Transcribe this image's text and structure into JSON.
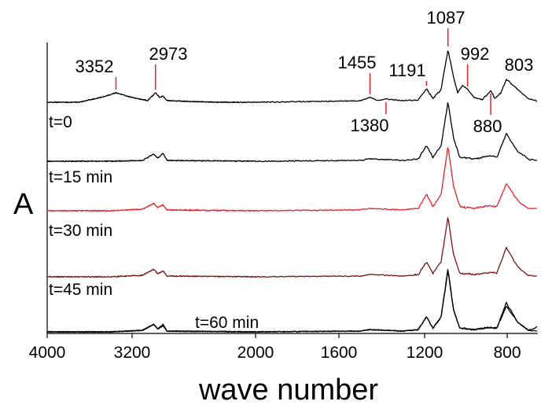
{
  "chart_data": {
    "type": "line",
    "xlabel": "wave number",
    "ylabel": "A",
    "x_ticks": [
      4000,
      3200,
      2000,
      1600,
      1200,
      800
    ],
    "x_tick_labels": [
      "4000",
      "3200",
      "2000",
      "1600",
      "1200",
      "800"
    ],
    "x_reversed": true,
    "x_axis_broken": true,
    "legend": "none",
    "grid": false,
    "peak_annotations": [
      {
        "label": "3352",
        "x": 3352
      },
      {
        "label": "2973",
        "x": 2973
      },
      {
        "label": "1455",
        "x": 1455
      },
      {
        "label": "1380",
        "x": 1380
      },
      {
        "label": "1191",
        "x": 1191
      },
      {
        "label": "1087",
        "x": 1087
      },
      {
        "label": "992",
        "x": 992
      },
      {
        "label": "880",
        "x": 880
      },
      {
        "label": "803",
        "x": 803
      }
    ],
    "series": [
      {
        "name": "",
        "color": "#000000",
        "points": [
          [
            4000,
            0
          ],
          [
            3700,
            0
          ],
          [
            3500,
            0.06
          ],
          [
            3352,
            0.12
          ],
          [
            3200,
            0.06
          ],
          [
            3050,
            0.02
          ],
          [
            2973,
            0.12
          ],
          [
            2930,
            0.06
          ],
          [
            2900,
            0.08
          ],
          [
            2860,
            0.02
          ],
          [
            2400,
            0
          ],
          [
            2000,
            0
          ],
          [
            1700,
            0.01
          ],
          [
            1500,
            0.02
          ],
          [
            1455,
            0.06
          ],
          [
            1420,
            0.02
          ],
          [
            1380,
            0.04
          ],
          [
            1300,
            0.02
          ],
          [
            1230,
            0.03
          ],
          [
            1191,
            0.17
          ],
          [
            1160,
            0.05
          ],
          [
            1120,
            0.16
          ],
          [
            1087,
            0.67
          ],
          [
            1060,
            0.32
          ],
          [
            1040,
            0.12
          ],
          [
            1015,
            0.22
          ],
          [
            992,
            0.16
          ],
          [
            960,
            0.06
          ],
          [
            920,
            0.03
          ],
          [
            880,
            0.15
          ],
          [
            860,
            0.05
          ],
          [
            830,
            0.12
          ],
          [
            803,
            0.3
          ],
          [
            775,
            0.16
          ],
          [
            750,
            0.04
          ],
          [
            730,
            0.01
          ]
        ]
      },
      {
        "name": "t=0",
        "color": "#000000",
        "points": [
          [
            4000,
            0
          ],
          [
            3400,
            0
          ],
          [
            3100,
            0.01
          ],
          [
            2990,
            0.09
          ],
          [
            2950,
            0.04
          ],
          [
            2900,
            0.1
          ],
          [
            2860,
            0.01
          ],
          [
            2000,
            0
          ],
          [
            1500,
            0.01
          ],
          [
            1455,
            0.03
          ],
          [
            1300,
            0.01
          ],
          [
            1230,
            0.03
          ],
          [
            1191,
            0.2
          ],
          [
            1160,
            0.05
          ],
          [
            1120,
            0.2
          ],
          [
            1087,
            0.75
          ],
          [
            1060,
            0.3
          ],
          [
            1030,
            0.05
          ],
          [
            960,
            0.03
          ],
          [
            880,
            0.07
          ],
          [
            850,
            0.05
          ],
          [
            803,
            0.36
          ],
          [
            775,
            0.12
          ],
          [
            750,
            0.02
          ],
          [
            730,
            0.01
          ]
        ]
      },
      {
        "name": "t=15 min",
        "color": "#e8202a",
        "points": [
          [
            4000,
            0
          ],
          [
            3400,
            0
          ],
          [
            3100,
            0.02
          ],
          [
            2990,
            0.09
          ],
          [
            2950,
            0.04
          ],
          [
            2900,
            0.07
          ],
          [
            2860,
            0.01
          ],
          [
            2000,
            0
          ],
          [
            1500,
            0.01
          ],
          [
            1455,
            0.03
          ],
          [
            1300,
            0.01
          ],
          [
            1230,
            0.03
          ],
          [
            1191,
            0.2
          ],
          [
            1160,
            0.05
          ],
          [
            1120,
            0.2
          ],
          [
            1087,
            0.78
          ],
          [
            1060,
            0.3
          ],
          [
            1030,
            0.05
          ],
          [
            960,
            0.03
          ],
          [
            880,
            0.06
          ],
          [
            850,
            0.05
          ],
          [
            803,
            0.33
          ],
          [
            775,
            0.12
          ],
          [
            750,
            0.02
          ],
          [
            730,
            0.04
          ]
        ]
      },
      {
        "name": "t=30 min",
        "color": "#7a1414",
        "points": [
          [
            4000,
            0
          ],
          [
            3400,
            0
          ],
          [
            3100,
            0.02
          ],
          [
            2990,
            0.1
          ],
          [
            2950,
            0.04
          ],
          [
            2900,
            0.08
          ],
          [
            2860,
            0.01
          ],
          [
            2000,
            0
          ],
          [
            1500,
            0.01
          ],
          [
            1455,
            0.03
          ],
          [
            1300,
            0.01
          ],
          [
            1230,
            0.03
          ],
          [
            1191,
            0.2
          ],
          [
            1160,
            0.05
          ],
          [
            1120,
            0.2
          ],
          [
            1087,
            0.8
          ],
          [
            1060,
            0.3
          ],
          [
            1030,
            0.05
          ],
          [
            960,
            0.03
          ],
          [
            880,
            0.06
          ],
          [
            850,
            0.05
          ],
          [
            803,
            0.4
          ],
          [
            775,
            0.12
          ],
          [
            750,
            0.02
          ],
          [
            730,
            0.01
          ]
        ]
      },
      {
        "name": "t=45 min",
        "color": "#000000",
        "points": [
          [
            4000,
            0
          ],
          [
            3400,
            0
          ],
          [
            3100,
            0.02
          ],
          [
            2990,
            0.1
          ],
          [
            2950,
            0.04
          ],
          [
            2900,
            0.1
          ],
          [
            2860,
            0.01
          ],
          [
            2000,
            0
          ],
          [
            1500,
            0.01
          ],
          [
            1455,
            0.03
          ],
          [
            1300,
            0.01
          ],
          [
            1230,
            0.03
          ],
          [
            1191,
            0.2
          ],
          [
            1160,
            0.05
          ],
          [
            1120,
            0.2
          ],
          [
            1087,
            0.82
          ],
          [
            1060,
            0.3
          ],
          [
            1030,
            0.05
          ],
          [
            960,
            0.03
          ],
          [
            880,
            0.06
          ],
          [
            850,
            0.05
          ],
          [
            803,
            0.4
          ],
          [
            775,
            0.12
          ],
          [
            750,
            0.02
          ],
          [
            730,
            0.01
          ]
        ]
      },
      {
        "name": "t=60 min",
        "color": "#000000",
        "points": [
          [
            4000,
            0
          ],
          [
            3400,
            0
          ],
          [
            3100,
            0.02
          ],
          [
            2990,
            0.1
          ],
          [
            2950,
            0.04
          ],
          [
            2900,
            0.08
          ],
          [
            2860,
            0.01
          ],
          [
            2000,
            0
          ],
          [
            1500,
            0.01
          ],
          [
            1455,
            0.03
          ],
          [
            1300,
            0.01
          ],
          [
            1230,
            0.03
          ],
          [
            1191,
            0.2
          ],
          [
            1160,
            0.05
          ],
          [
            1120,
            0.2
          ],
          [
            1087,
            0.85
          ],
          [
            1060,
            0.3
          ],
          [
            1030,
            0.05
          ],
          [
            960,
            0.03
          ],
          [
            880,
            0.06
          ],
          [
            850,
            0.05
          ],
          [
            803,
            0.35
          ],
          [
            775,
            0.12
          ],
          [
            750,
            0.02
          ],
          [
            730,
            0.07
          ]
        ]
      }
    ]
  }
}
